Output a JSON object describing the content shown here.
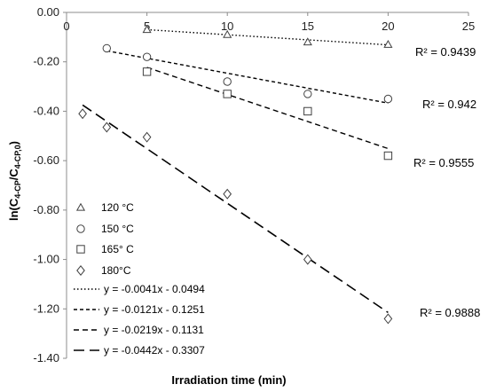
{
  "chart_data": {
    "type": "scatter",
    "xlabel": "Irradiation time (min)",
    "ylabel": {
      "prefix": "ln(C",
      "sub1": "4-CP",
      "mid": "/C",
      "sub2": "4-CP,0",
      "suffix": ")"
    },
    "xlim": [
      0,
      25
    ],
    "ylim": [
      -1.4,
      0.0
    ],
    "x_ticks": [
      "0",
      "5",
      "10",
      "15",
      "20",
      "25"
    ],
    "y_ticks": [
      "0.00",
      "-0.20",
      "-0.40",
      "-0.60",
      "-0.80",
      "-1.00",
      "-1.20",
      "-1.40"
    ],
    "x_axis_position": "top",
    "grid": false,
    "legend_position": "bottom-left",
    "series": [
      {
        "name": "120 °C",
        "marker": "triangle",
        "points": [
          [
            5,
            -0.07
          ],
          [
            10,
            -0.09
          ],
          [
            15,
            -0.12
          ],
          [
            20,
            -0.13
          ]
        ],
        "trendline": {
          "label": "y = -0.0041x - 0.0494",
          "slope": -0.0041,
          "intercept": -0.0494,
          "x_range": [
            5,
            20
          ],
          "dash": "dotted"
        },
        "r2": "R² = 0.9439"
      },
      {
        "name": "150 °C",
        "marker": "circle",
        "points": [
          [
            2.5,
            -0.145
          ],
          [
            5,
            -0.18
          ],
          [
            10,
            -0.28
          ],
          [
            15,
            -0.33
          ],
          [
            20,
            -0.35
          ]
        ],
        "trendline": {
          "label": "y = -0.0121x - 0.1251",
          "slope": -0.0121,
          "intercept": -0.1251,
          "x_range": [
            2.5,
            20
          ],
          "dash": "short-dash"
        },
        "r2": "R² = 0.942"
      },
      {
        "name": "165° C",
        "marker": "square",
        "points": [
          [
            5,
            -0.24
          ],
          [
            10,
            -0.33
          ],
          [
            15,
            -0.4
          ],
          [
            20,
            -0.58
          ]
        ],
        "trendline": {
          "label": "y = -0.0219x - 0.1131",
          "slope": -0.0219,
          "intercept": -0.1131,
          "x_range": [
            5,
            20
          ],
          "dash": "dash"
        },
        "r2": "R² = 0.9555"
      },
      {
        "name": "180°C",
        "marker": "diamond",
        "points": [
          [
            1,
            -0.41
          ],
          [
            2.5,
            -0.465
          ],
          [
            5,
            -0.505
          ],
          [
            10,
            -0.735
          ],
          [
            15,
            -1.0
          ],
          [
            20,
            -1.24
          ]
        ],
        "trendline": {
          "label": "y = -0.0442x - 0.3307",
          "slope": -0.0442,
          "intercept": -0.3307,
          "x_range": [
            1,
            20
          ],
          "dash": "long-dash"
        },
        "r2": "R² = 0.9888"
      }
    ]
  }
}
